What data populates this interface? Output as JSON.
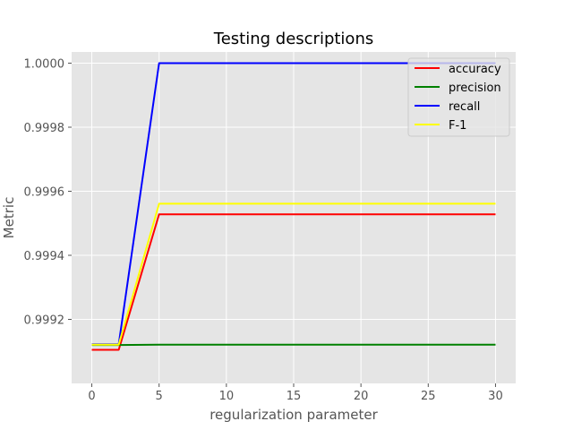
{
  "chart_data": {
    "type": "line",
    "title": "Testing descriptions",
    "xlabel": "regularization parameter",
    "ylabel": "Metric",
    "xlim": [
      -1.5,
      31.5
    ],
    "ylim": [
      0.999,
      1.000035
    ],
    "x_ticks": [
      0,
      5,
      10,
      15,
      20,
      25,
      30
    ],
    "x_tick_labels": [
      "0",
      "5",
      "10",
      "15",
      "20",
      "25",
      "30"
    ],
    "y_ticks": [
      0.9992,
      0.9994,
      0.9996,
      0.9998,
      1.0
    ],
    "y_tick_labels": [
      "0.9992",
      "0.9994",
      "0.9996",
      "0.9998",
      "1.0000"
    ],
    "grid": true,
    "background": "#e5e5e5",
    "legend_position": "top-right",
    "x": [
      0,
      2,
      5,
      30
    ],
    "series": [
      {
        "name": "accuracy",
        "color": "#ff0000",
        "values": [
          0.999105,
          0.999105,
          0.999528,
          0.999528
        ]
      },
      {
        "name": "precision",
        "color": "#008000",
        "values": [
          0.99912,
          0.99912,
          0.999121,
          0.999121
        ]
      },
      {
        "name": "recall",
        "color": "#0000ff",
        "values": [
          0.999122,
          0.999122,
          1.0,
          1.0
        ]
      },
      {
        "name": "F-1",
        "color": "#ffff00",
        "values": [
          0.999121,
          0.999121,
          0.999561,
          0.999561
        ]
      }
    ]
  }
}
